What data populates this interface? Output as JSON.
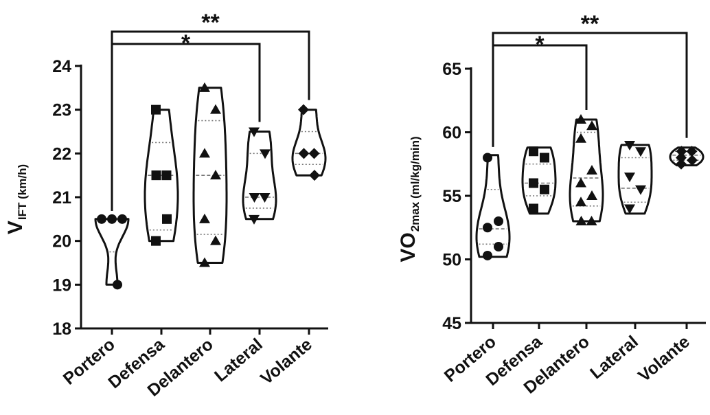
{
  "chart_data": [
    {
      "type": "violin",
      "ylabel_main": "V",
      "ylabel_sub": "IFT (km/h)",
      "ylim": [
        18,
        24
      ],
      "yticks": [
        18,
        19,
        20,
        21,
        22,
        23,
        24
      ],
      "categories": [
        "Portero",
        "Defensa",
        "Delantero",
        "Lateral",
        "Volante"
      ],
      "markers": [
        "circle",
        "square",
        "triangle-up",
        "triangle-down",
        "diamond"
      ],
      "groups": [
        {
          "name": "Portero",
          "points": [
            20.5,
            20.5,
            20.5,
            19.0
          ],
          "min": 19.0,
          "max": 20.5,
          "median": 20.5,
          "q1": 19.75,
          "q3": 20.5
        },
        {
          "name": "Defensa",
          "points": [
            23.0,
            21.5,
            21.5,
            20.5,
            20.0
          ],
          "min": 20.0,
          "max": 23.0,
          "median": 21.5,
          "q1": 20.25,
          "q3": 22.25
        },
        {
          "name": "Delantero",
          "points": [
            23.5,
            23.0,
            22.0,
            21.5,
            20.5,
            20.0,
            19.5
          ],
          "min": 19.5,
          "max": 23.5,
          "median": 21.5,
          "q1": 20.15,
          "q3": 22.75
        },
        {
          "name": "Lateral",
          "points": [
            22.5,
            22.0,
            21.0,
            21.0,
            20.5
          ],
          "min": 20.5,
          "max": 22.5,
          "median": 21.0,
          "q1": 20.75,
          "q3": 22.0
        },
        {
          "name": "Volante",
          "points": [
            23.0,
            22.0,
            22.0,
            21.5
          ],
          "min": 21.5,
          "max": 23.0,
          "median": 22.0,
          "q1": 21.75,
          "q3": 22.5
        }
      ],
      "significance": [
        {
          "from": "Portero",
          "to": "Lateral",
          "label": "*"
        },
        {
          "from": "Portero",
          "to": "Volante",
          "label": "**"
        }
      ]
    },
    {
      "type": "violin",
      "ylabel_main": "VO",
      "ylabel_sub": "2max (ml/kg/min)",
      "ylim": [
        45,
        65
      ],
      "yticks": [
        45,
        50,
        55,
        60,
        65
      ],
      "categories": [
        "Portero",
        "Defensa",
        "Delantero",
        "Lateral",
        "Volante"
      ],
      "markers": [
        "circle",
        "square",
        "triangle-up",
        "triangle-down",
        "diamond"
      ],
      "groups": [
        {
          "name": "Portero",
          "points": [
            58.0,
            53.0,
            52.5,
            51.0,
            50.3
          ],
          "min": 50.2,
          "max": 58.2,
          "median": 52.4,
          "q1": 51.2,
          "q3": 55.5
        },
        {
          "name": "Defensa",
          "points": [
            58.5,
            58.0,
            56.0,
            55.5,
            54.0
          ],
          "min": 53.6,
          "max": 58.8,
          "median": 56.0,
          "q1": 55.0,
          "q3": 57.5
        },
        {
          "name": "Delantero",
          "points": [
            61.0,
            60.5,
            59.5,
            57.0,
            56.0,
            55.0,
            54.5,
            53.0,
            53.0
          ],
          "min": 53.0,
          "max": 61.0,
          "median": 56.4,
          "q1": 54.2,
          "q3": 60.0
        },
        {
          "name": "Lateral",
          "points": [
            59.0,
            58.5,
            56.5,
            55.5,
            54.0
          ],
          "min": 53.6,
          "max": 59.0,
          "median": 55.6,
          "q1": 54.5,
          "q3": 58.0
        },
        {
          "name": "Volante",
          "points": [
            58.5,
            58.5,
            58.0,
            57.8,
            57.5
          ],
          "min": 57.4,
          "max": 58.8,
          "median": 58.2,
          "q1": 57.8,
          "q3": 58.5
        }
      ],
      "significance": [
        {
          "from": "Portero",
          "to": "Delantero",
          "label": "*"
        },
        {
          "from": "Portero",
          "to": "Volante",
          "label": "**"
        }
      ]
    }
  ]
}
